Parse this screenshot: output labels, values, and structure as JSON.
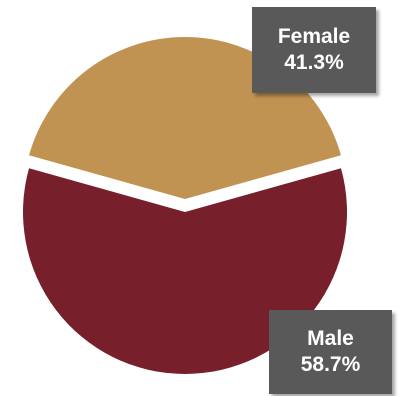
{
  "chart_data": {
    "type": "pie",
    "title": "",
    "slices": [
      {
        "label": "Female",
        "value": 41.3,
        "value_label": "41.3%",
        "color": "#C09352",
        "exploded": true
      },
      {
        "label": "Male",
        "value": 58.7,
        "value_label": "58.7%",
        "color": "#771F2A",
        "exploded": false
      }
    ],
    "legend": "none"
  }
}
